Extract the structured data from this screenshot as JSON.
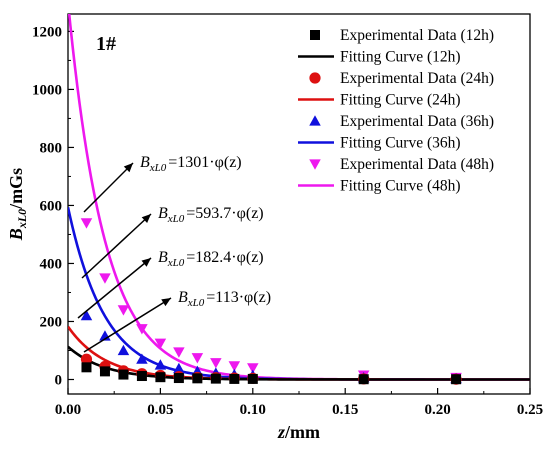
{
  "chart_data": {
    "type": "scatter",
    "panel_label": "1#",
    "xlabel": {
      "var": "z",
      "unit": "/mm"
    },
    "ylabel": {
      "var": "B",
      "sub": "xL0",
      "unit": "/mGs"
    },
    "xlim": [
      0,
      0.25
    ],
    "ylim": [
      -50,
      1260
    ],
    "x_ticks": [
      "0.00",
      "0.05",
      "0.10",
      "0.15",
      "0.20",
      "0.25"
    ],
    "x_tick_values": [
      0,
      0.05,
      0.1,
      0.15,
      0.2,
      0.25
    ],
    "y_ticks": [
      "0",
      "200",
      "400",
      "600",
      "800",
      "1000",
      "1200"
    ],
    "y_tick_values": [
      0,
      200,
      400,
      600,
      800,
      1000,
      1200
    ],
    "legend_position": "top-right",
    "series": [
      {
        "hours": "12h",
        "color": "#000000",
        "marker": "square",
        "legend_data": "Experimental Data (12h)",
        "legend_fit": "Fitting Curve (12h)",
        "amplitude": 113,
        "x": [
          0.01,
          0.02,
          0.03,
          0.04,
          0.05,
          0.06,
          0.07,
          0.08,
          0.09,
          0.1,
          0.16,
          0.21
        ],
        "y": [
          42,
          28,
          17,
          12,
          8,
          5,
          4,
          3,
          2,
          2,
          1,
          1
        ]
      },
      {
        "hours": "24h",
        "color": "#dd1010",
        "marker": "circle",
        "legend_data": "Experimental Data (24h)",
        "legend_fit": "Fitting Curve (24h)",
        "amplitude": 182.4,
        "x": [
          0.01,
          0.02,
          0.03,
          0.04,
          0.05,
          0.06,
          0.07,
          0.08,
          0.09,
          0.1,
          0.16,
          0.21
        ],
        "y": [
          70,
          45,
          30,
          20,
          14,
          10,
          7,
          6,
          5,
          4,
          2,
          1
        ]
      },
      {
        "hours": "36h",
        "color": "#1010dd",
        "marker": "triangle-up",
        "legend_data": "Experimental Data (36h)",
        "legend_fit": "Fitting Curve (36h)",
        "amplitude": 593.7,
        "x": [
          0.01,
          0.02,
          0.03,
          0.04,
          0.05,
          0.06,
          0.07,
          0.08,
          0.09,
          0.1,
          0.16,
          0.21
        ],
        "y": [
          220,
          150,
          100,
          70,
          50,
          38,
          28,
          22,
          17,
          14,
          6,
          3
        ]
      },
      {
        "hours": "48h",
        "color": "#ee18ee",
        "marker": "triangle-down",
        "legend_data": "Experimental Data (48h)",
        "legend_fit": "Fitting Curve (48h)",
        "amplitude": 1301,
        "x": [
          0.01,
          0.02,
          0.03,
          0.04,
          0.05,
          0.06,
          0.07,
          0.08,
          0.09,
          0.1,
          0.16,
          0.21
        ],
        "y": [
          540,
          350,
          240,
          175,
          125,
          95,
          75,
          58,
          47,
          40,
          15,
          7
        ]
      }
    ],
    "fit_decay": 50,
    "annotations": [
      {
        "prefix": "B",
        "sub": "xL0",
        "rest": "=1301·φ(z)",
        "series": "48h"
      },
      {
        "prefix": "B",
        "sub": "xL0",
        "rest": "=593.7·φ(z)",
        "series": "36h"
      },
      {
        "prefix": "B",
        "sub": "xL0",
        "rest": "=182.4·φ(z)",
        "series": "24h"
      },
      {
        "prefix": "B",
        "sub": "xL0",
        "rest": "=113·φ(z)",
        "series": "12h"
      }
    ]
  }
}
